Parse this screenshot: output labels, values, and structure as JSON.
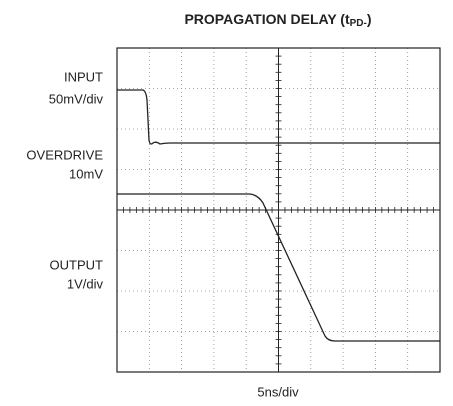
{
  "title": {
    "main": "PROPAGATION DELAY (t",
    "sub": "PD-",
    "close": ")"
  },
  "labels": {
    "input": "INPUT",
    "input_scale": "50mV/div",
    "overdrive": "OVERDRIVE",
    "overdrive_value": "10mV",
    "output": "OUTPUT",
    "output_scale": "1V/div",
    "time_scale": "5ns/div"
  }
}
